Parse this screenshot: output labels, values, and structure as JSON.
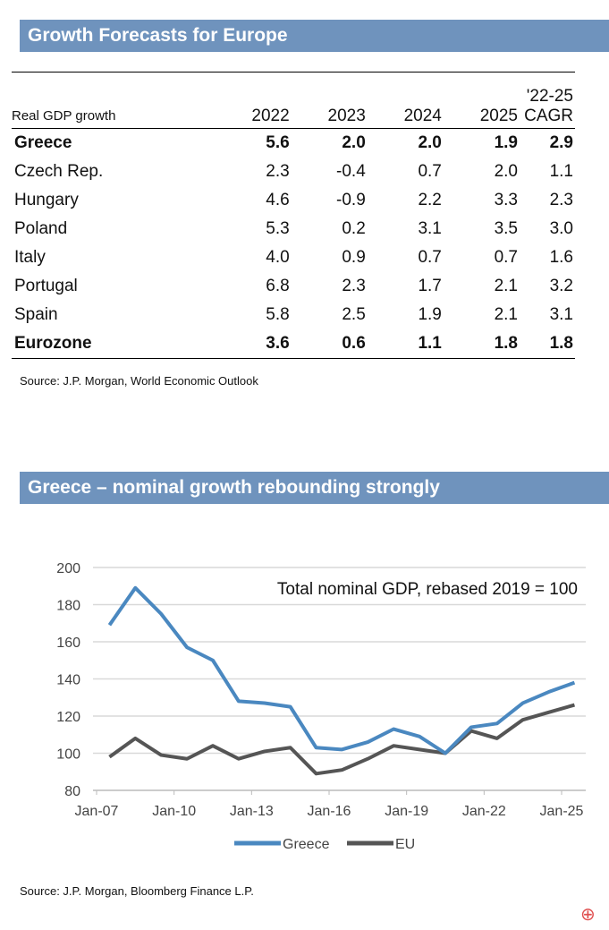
{
  "table_section": {
    "title": "Growth Forecasts for Europe",
    "headers": [
      "Real GDP growth",
      "2022",
      "2023",
      "2024",
      "2025",
      "'22-25 CAGR"
    ],
    "rows": [
      {
        "country": "Greece",
        "bold": true,
        "values": [
          "5.6",
          "2.0",
          "2.0",
          "1.9",
          "2.9"
        ]
      },
      {
        "country": "Czech Rep.",
        "bold": false,
        "values": [
          "2.3",
          "-0.4",
          "0.7",
          "2.0",
          "1.1"
        ]
      },
      {
        "country": "Hungary",
        "bold": false,
        "values": [
          "4.6",
          "-0.9",
          "2.2",
          "3.3",
          "2.3"
        ]
      },
      {
        "country": "Poland",
        "bold": false,
        "values": [
          "5.3",
          "0.2",
          "3.1",
          "3.5",
          "3.0"
        ]
      },
      {
        "country": "Italy",
        "bold": false,
        "values": [
          "4.0",
          "0.9",
          "0.7",
          "0.7",
          "1.6"
        ]
      },
      {
        "country": "Portugal",
        "bold": false,
        "values": [
          "6.8",
          "2.3",
          "1.7",
          "2.1",
          "3.2"
        ]
      },
      {
        "country": "Spain",
        "bold": false,
        "values": [
          "5.8",
          "2.5",
          "1.9",
          "2.1",
          "3.1"
        ]
      },
      {
        "country": "Eurozone",
        "bold": true,
        "values": [
          "3.6",
          "0.6",
          "1.1",
          "1.8",
          "1.8"
        ]
      }
    ],
    "source": "Source: J.P. Morgan, World Economic Outlook"
  },
  "chart_section": {
    "title": "Greece – nominal growth rebounding strongly",
    "source": "Source: J.P. Morgan, Bloomberg Finance L.P."
  },
  "chart_data": {
    "type": "line",
    "title": "Total nominal GDP, rebased 2019 = 100",
    "x": [
      2007.5,
      2008.5,
      2009.5,
      2010.5,
      2011.5,
      2012.5,
      2013.5,
      2014.5,
      2015.5,
      2016.5,
      2017.5,
      2018.5,
      2019.5,
      2020.5,
      2021.5,
      2022.5,
      2023.5,
      2024.5,
      2025.5
    ],
    "series": [
      {
        "name": "Greece",
        "color": "#4a88c0",
        "values": [
          169,
          189,
          175,
          157,
          150,
          128,
          127,
          125,
          103,
          102,
          106,
          113,
          109,
          100,
          114,
          116,
          127,
          133,
          138
        ]
      },
      {
        "name": "EU",
        "color": "#555555",
        "values": [
          98,
          108,
          99,
          97,
          104,
          97,
          101,
          103,
          89,
          91,
          97,
          104,
          102,
          100,
          112,
          108,
          118,
          122,
          126
        ]
      }
    ],
    "ylim": [
      80,
      200
    ],
    "yticks": [
      "80",
      "100",
      "120",
      "140",
      "160",
      "180",
      "200"
    ],
    "xticks": [
      "Jan-07",
      "Jan-10",
      "Jan-13",
      "Jan-16",
      "Jan-19",
      "Jan-22",
      "Jan-25"
    ],
    "xtick_years": [
      2007,
      2010,
      2013,
      2016,
      2019,
      2022,
      2025
    ],
    "legend_position": "bottom",
    "grid": true
  }
}
